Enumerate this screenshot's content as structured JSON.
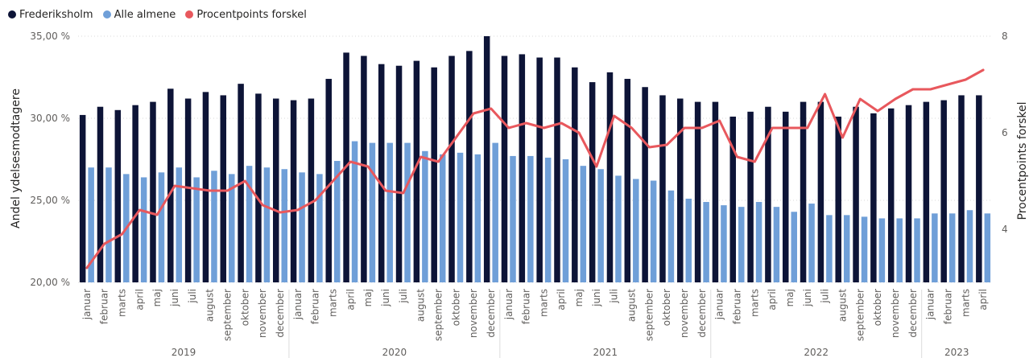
{
  "legend": [
    {
      "label": "Frederiksholm",
      "color": "#0d1437"
    },
    {
      "label": "Alle almene",
      "color": "#6f9fd8"
    },
    {
      "label": "Procentpoints forskel",
      "color": "#e8585d"
    }
  ],
  "chart_data": {
    "type": "bar",
    "ylabel": "Andel ydelsesmodtagere",
    "y2label": "Procentpoints forskel",
    "ylim": [
      20,
      35
    ],
    "y_ticks": [
      "20,00 %",
      "25,00 %",
      "30,00 %",
      "35,00 %"
    ],
    "y2lim": [
      2.9,
      8
    ],
    "y2_ticks": [
      "4",
      "6",
      "8"
    ],
    "categories": [
      "januar",
      "februar",
      "marts",
      "april",
      "maj",
      "juni",
      "juli",
      "august",
      "september",
      "oktober",
      "november",
      "december",
      "januar",
      "februar",
      "marts",
      "april",
      "maj",
      "juni",
      "juli",
      "august",
      "september",
      "oktober",
      "november",
      "december",
      "januar",
      "februar",
      "marts",
      "april",
      "maj",
      "juni",
      "juli",
      "august",
      "september",
      "oktober",
      "november",
      "december",
      "januar",
      "februar",
      "marts",
      "april",
      "maj",
      "juni",
      "juli",
      "august",
      "september",
      "oktober",
      "november",
      "december",
      "januar",
      "februar",
      "marts",
      "april"
    ],
    "years": [
      {
        "label": "2019",
        "count": 12
      },
      {
        "label": "2020",
        "count": 12
      },
      {
        "label": "2021",
        "count": 12
      },
      {
        "label": "2022",
        "count": 12
      },
      {
        "label": "2023",
        "count": 4
      }
    ],
    "series": [
      {
        "name": "Frederiksholm",
        "axis": "left",
        "kind": "bar",
        "color": "#0d1437",
        "values": [
          30.2,
          30.7,
          30.5,
          30.8,
          31.0,
          31.8,
          31.2,
          31.6,
          31.4,
          32.1,
          31.5,
          31.2,
          31.1,
          31.2,
          32.4,
          34.0,
          33.8,
          33.3,
          33.2,
          33.5,
          33.1,
          33.8,
          34.1,
          35.0,
          33.8,
          33.9,
          33.7,
          33.7,
          33.1,
          32.2,
          32.8,
          32.4,
          31.9,
          31.4,
          31.2,
          31.0,
          31.0,
          30.1,
          30.4,
          30.7,
          30.4,
          31.0,
          31.0,
          30.1,
          30.7,
          30.3,
          30.6,
          30.8,
          31.0,
          31.1,
          31.4,
          31.4
        ]
      },
      {
        "name": "Alle almene",
        "axis": "left",
        "kind": "bar",
        "color": "#6f9fd8",
        "values": [
          27.0,
          27.0,
          26.6,
          26.4,
          26.7,
          27.0,
          26.4,
          26.8,
          26.6,
          27.1,
          27.0,
          26.9,
          26.7,
          26.6,
          27.4,
          28.6,
          28.5,
          28.5,
          28.5,
          28.0,
          27.8,
          27.9,
          27.8,
          28.5,
          27.7,
          27.7,
          27.6,
          27.5,
          27.1,
          26.9,
          26.5,
          26.3,
          26.2,
          25.6,
          25.1,
          24.9,
          24.7,
          24.6,
          24.9,
          24.6,
          24.3,
          24.8,
          24.1,
          24.1,
          24.0,
          23.9,
          23.9,
          23.9,
          24.2,
          24.2,
          24.4,
          24.2
        ]
      },
      {
        "name": "Procentpoints forskel",
        "axis": "right",
        "kind": "line",
        "color": "#e8585d",
        "values": [
          3.2,
          3.7,
          3.9,
          4.4,
          4.3,
          4.9,
          4.85,
          4.8,
          4.8,
          5.0,
          4.5,
          4.35,
          4.4,
          4.6,
          5.0,
          5.4,
          5.3,
          4.8,
          4.75,
          5.5,
          5.4,
          5.9,
          6.4,
          6.5,
          6.1,
          6.2,
          6.1,
          6.2,
          6.0,
          5.3,
          6.35,
          6.1,
          5.7,
          5.75,
          6.1,
          6.1,
          6.25,
          5.5,
          5.4,
          6.1,
          6.1,
          6.1,
          6.8,
          5.9,
          6.7,
          6.45,
          6.7,
          6.9,
          6.9,
          7.0,
          7.1,
          7.3
        ]
      }
    ]
  }
}
